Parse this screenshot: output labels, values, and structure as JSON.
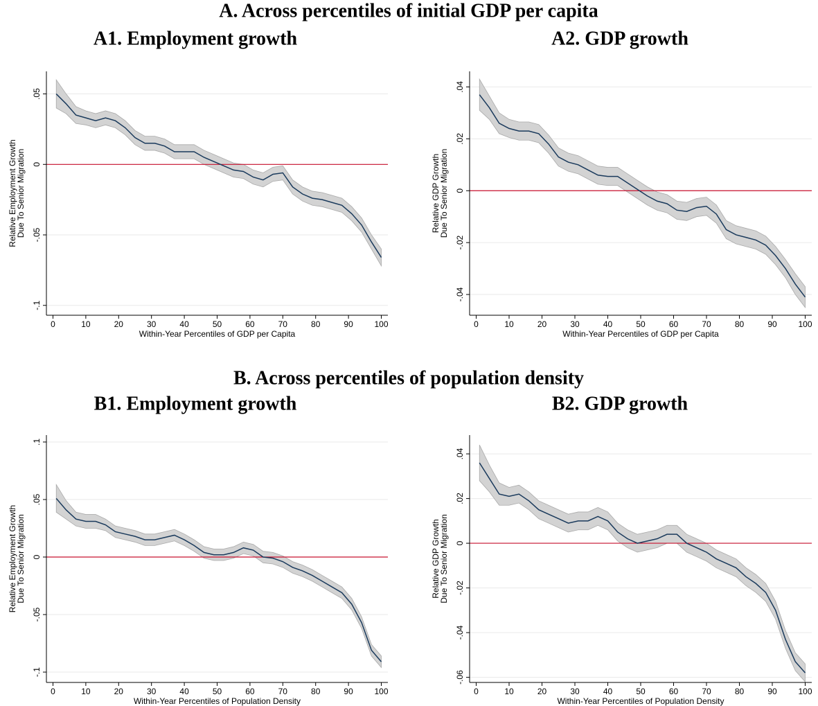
{
  "sections": [
    "A. Across percentiles of initial GDP per capita",
    "B. Across percentiles of population density"
  ],
  "chart_data": [
    {
      "type": "line",
      "title": "A1. Employment growth",
      "xlabel": "Within-Year Percentiles of GDP per Capita",
      "ylabel": [
        "Relative Employment Growth",
        "Due To Senior Migration"
      ],
      "x": [
        1,
        4,
        7,
        10,
        13,
        16,
        19,
        22,
        25,
        28,
        31,
        34,
        37,
        40,
        43,
        46,
        49,
        52,
        55,
        58,
        61,
        64,
        67,
        70,
        73,
        76,
        79,
        82,
        85,
        88,
        91,
        94,
        97,
        100
      ],
      "values": [
        0.05,
        0.043,
        0.035,
        0.033,
        0.031,
        0.033,
        0.031,
        0.026,
        0.019,
        0.015,
        0.015,
        0.013,
        0.009,
        0.009,
        0.009,
        0.005,
        0.002,
        -0.001,
        -0.004,
        -0.005,
        -0.009,
        -0.011,
        -0.007,
        -0.006,
        -0.016,
        -0.021,
        -0.024,
        -0.025,
        -0.027,
        -0.029,
        -0.035,
        -0.043,
        -0.055,
        -0.066
      ],
      "errors": [
        0.01,
        0.007,
        0.006,
        0.005,
        0.005,
        0.005,
        0.005,
        0.005,
        0.005,
        0.005,
        0.005,
        0.005,
        0.005,
        0.005,
        0.005,
        0.005,
        0.005,
        0.005,
        0.005,
        0.005,
        0.005,
        0.005,
        0.005,
        0.005,
        0.005,
        0.005,
        0.005,
        0.005,
        0.005,
        0.005,
        0.005,
        0.005,
        0.005,
        0.006
      ],
      "color": "#1a3a5c",
      "band_color": "#d3d3d3",
      "hline": 0,
      "hline_color": "#c8102e",
      "grid": true,
      "xlim": [
        -2,
        102
      ],
      "xticks": [
        0,
        10,
        20,
        30,
        40,
        50,
        60,
        70,
        80,
        90,
        100
      ],
      "ylim": [
        -0.107,
        0.066
      ],
      "yticks": [
        {
          "value": 0.05,
          "label": ".05"
        },
        0,
        {
          "value": -0.05,
          "label": "-.05"
        },
        {
          "value": -0.1,
          "label": "-.1"
        }
      ]
    },
    {
      "type": "line",
      "title": "A2. GDP growth",
      "xlabel": "Within-Year Percentiles of GDP per Capita",
      "ylabel": [
        "Relative GDP Growth",
        "Due To Senior Migration"
      ],
      "x": [
        1,
        4,
        7,
        10,
        13,
        16,
        19,
        22,
        25,
        28,
        31,
        34,
        37,
        40,
        43,
        46,
        49,
        52,
        55,
        58,
        61,
        64,
        67,
        70,
        73,
        76,
        79,
        82,
        85,
        88,
        91,
        94,
        97,
        100
      ],
      "values": [
        0.037,
        0.032,
        0.026,
        0.024,
        0.023,
        0.023,
        0.022,
        0.018,
        0.013,
        0.011,
        0.01,
        0.008,
        0.006,
        0.0055,
        0.0055,
        0.003,
        0.0005,
        -0.002,
        -0.004,
        -0.005,
        -0.0075,
        -0.008,
        -0.0065,
        -0.006,
        -0.009,
        -0.015,
        -0.017,
        -0.018,
        -0.019,
        -0.021,
        -0.025,
        -0.03,
        -0.036,
        -0.041
      ],
      "errors": [
        0.006,
        0.0045,
        0.004,
        0.0035,
        0.0035,
        0.0035,
        0.0035,
        0.0035,
        0.0035,
        0.0035,
        0.0035,
        0.0035,
        0.0035,
        0.0035,
        0.0035,
        0.0035,
        0.0035,
        0.0035,
        0.0035,
        0.0035,
        0.0035,
        0.0035,
        0.0035,
        0.0035,
        0.0035,
        0.0035,
        0.0035,
        0.0035,
        0.0035,
        0.0035,
        0.0035,
        0.0035,
        0.004,
        0.004
      ],
      "color": "#1a3a5c",
      "band_color": "#d3d3d3",
      "hline": 0,
      "hline_color": "#c8102e",
      "grid": true,
      "xlim": [
        -2,
        102
      ],
      "xticks": [
        0,
        10,
        20,
        30,
        40,
        50,
        60,
        70,
        80,
        90,
        100
      ],
      "ylim": [
        -0.048,
        0.046
      ],
      "yticks": [
        {
          "value": 0.04,
          "label": ".04"
        },
        {
          "value": 0.02,
          "label": ".02"
        },
        0,
        {
          "value": -0.02,
          "label": "-.02"
        },
        {
          "value": -0.04,
          "label": "-.04"
        }
      ]
    },
    {
      "type": "line",
      "title": "B1. Employment growth",
      "xlabel": "Within-Year Percentiles of Population Density",
      "ylabel": [
        "Relative Employment Growth",
        "Due To Senior Migration"
      ],
      "x": [
        1,
        4,
        7,
        10,
        13,
        16,
        19,
        22,
        25,
        28,
        31,
        34,
        37,
        40,
        43,
        46,
        49,
        52,
        55,
        58,
        61,
        64,
        67,
        70,
        73,
        76,
        79,
        82,
        85,
        88,
        91,
        94,
        97,
        100
      ],
      "values": [
        0.051,
        0.041,
        0.033,
        0.031,
        0.031,
        0.028,
        0.022,
        0.02,
        0.018,
        0.015,
        0.015,
        0.017,
        0.019,
        0.015,
        0.01,
        0.004,
        0.002,
        0.002,
        0.004,
        0.008,
        0.006,
        0.0,
        -0.001,
        -0.004,
        -0.009,
        -0.012,
        -0.016,
        -0.021,
        -0.026,
        -0.031,
        -0.041,
        -0.057,
        -0.081,
        -0.091
      ],
      "errors": [
        0.012,
        0.008,
        0.006,
        0.006,
        0.006,
        0.005,
        0.005,
        0.005,
        0.005,
        0.005,
        0.005,
        0.005,
        0.005,
        0.005,
        0.005,
        0.005,
        0.005,
        0.005,
        0.005,
        0.005,
        0.005,
        0.005,
        0.005,
        0.005,
        0.005,
        0.005,
        0.005,
        0.005,
        0.005,
        0.005,
        0.005,
        0.005,
        0.005,
        0.005
      ],
      "color": "#1a3a5c",
      "band_color": "#d3d3d3",
      "hline": 0,
      "hline_color": "#c8102e",
      "grid": true,
      "xlim": [
        -2,
        102
      ],
      "xticks": [
        0,
        10,
        20,
        30,
        40,
        50,
        60,
        70,
        80,
        90,
        100
      ],
      "ylim": [
        -0.109,
        0.106
      ],
      "yticks": [
        {
          "value": 0.1,
          "label": ".1"
        },
        {
          "value": 0.05,
          "label": ".05"
        },
        0,
        {
          "value": -0.05,
          "label": "-.05"
        },
        {
          "value": -0.1,
          "label": "-.1"
        }
      ]
    },
    {
      "type": "line",
      "title": "B2. GDP growth",
      "xlabel": "Within-Year Percentiles of Population Density",
      "ylabel": [
        "Relative GDP Growth",
        "Due To Senior Migration"
      ],
      "x": [
        1,
        4,
        7,
        10,
        13,
        16,
        19,
        22,
        25,
        28,
        31,
        34,
        37,
        40,
        43,
        46,
        49,
        52,
        55,
        58,
        61,
        64,
        67,
        70,
        73,
        76,
        79,
        82,
        85,
        88,
        91,
        94,
        97,
        100
      ],
      "values": [
        0.036,
        0.029,
        0.022,
        0.021,
        0.022,
        0.019,
        0.015,
        0.013,
        0.011,
        0.009,
        0.01,
        0.01,
        0.012,
        0.01,
        0.005,
        0.002,
        0.0,
        0.001,
        0.002,
        0.004,
        0.004,
        0.0,
        -0.002,
        -0.004,
        -0.007,
        -0.009,
        -0.011,
        -0.015,
        -0.018,
        -0.022,
        -0.03,
        -0.043,
        -0.053,
        -0.058
      ],
      "errors": [
        0.008,
        0.006,
        0.005,
        0.004,
        0.004,
        0.004,
        0.004,
        0.004,
        0.004,
        0.004,
        0.004,
        0.004,
        0.004,
        0.004,
        0.004,
        0.004,
        0.004,
        0.004,
        0.004,
        0.004,
        0.004,
        0.004,
        0.004,
        0.004,
        0.004,
        0.004,
        0.004,
        0.004,
        0.004,
        0.004,
        0.004,
        0.004,
        0.004,
        0.004
      ],
      "color": "#1a3a5c",
      "band_color": "#d3d3d3",
      "hline": 0,
      "hline_color": "#c8102e",
      "grid": true,
      "xlim": [
        -2,
        102
      ],
      "xticks": [
        0,
        10,
        20,
        30,
        40,
        50,
        60,
        70,
        80,
        90,
        100
      ],
      "ylim": [
        -0.0623,
        0.0484
      ],
      "yticks": [
        {
          "value": 0.04,
          "label": ".04"
        },
        {
          "value": 0.02,
          "label": ".02"
        },
        0,
        {
          "value": -0.02,
          "label": "-.02"
        },
        {
          "value": -0.04,
          "label": "-.04"
        },
        {
          "value": -0.06,
          "label": "-.06"
        }
      ]
    }
  ]
}
